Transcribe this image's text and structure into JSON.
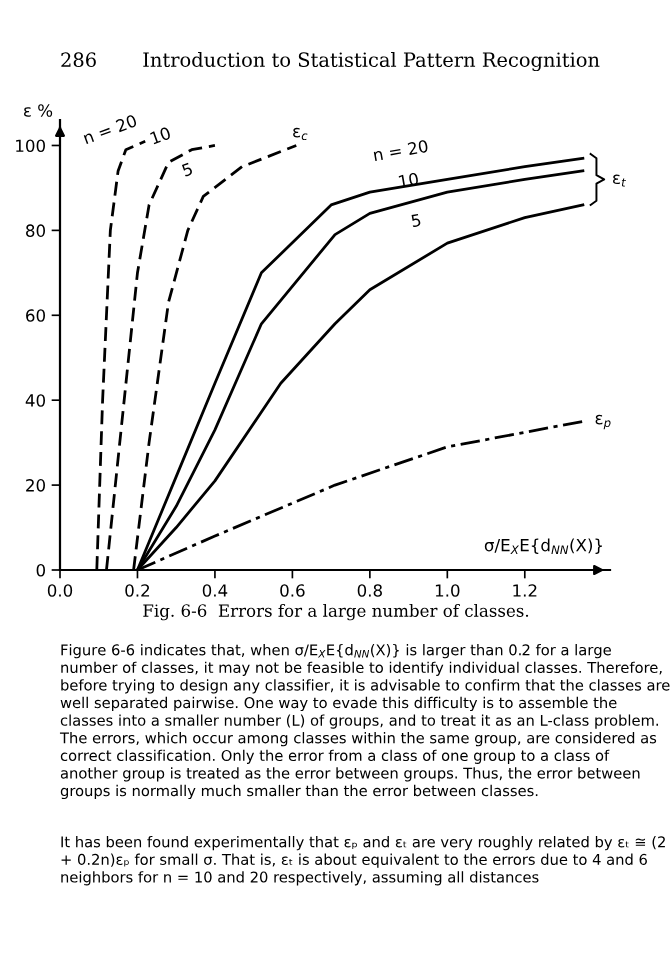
{
  "chart_data": {
    "type": "line",
    "xlabel": "σ/E$_{X}$E{d$_{NN}$(X)}",
    "ylabel": "ε %",
    "xlim": [
      0,
      1.42
    ],
    "ylim": [
      0,
      106
    ],
    "xticks": [
      {
        "value": 0,
        "label": "0.0"
      },
      0.2,
      0.4,
      0.6,
      0.8,
      {
        "value": 1,
        "label": "1.0"
      },
      1.2
    ],
    "yticks": [
      0,
      20,
      40,
      60,
      80,
      100
    ],
    "grid": false,
    "legend": false,
    "marker": "none",
    "series": [
      {
        "color": "#000000",
        "line_style": "dashed",
        "x": [
          0.095,
          0.11,
          0.13,
          0.15,
          0.17,
          0.22
        ],
        "values": [
          0,
          40,
          80,
          94,
          99,
          101
        ]
      },
      {
        "color": "#000000",
        "line_style": "dashed",
        "x": [
          0.12,
          0.16,
          0.2,
          0.23,
          0.28,
          0.34,
          0.4
        ],
        "values": [
          0,
          35,
          70,
          86,
          96,
          99,
          100
        ]
      },
      {
        "color": "#000000",
        "line_style": "dashed",
        "x": [
          0.19,
          0.23,
          0.28,
          0.33,
          0.37,
          0.47,
          0.61
        ],
        "values": [
          0,
          30,
          63,
          80,
          88,
          95,
          100
        ]
      },
      {
        "color": "#000000",
        "line_style": "solid",
        "x": [
          0.2,
          0.3,
          0.4,
          0.52,
          0.7,
          0.8,
          1.0,
          1.2,
          1.35
        ],
        "values": [
          0,
          22,
          44,
          70,
          86,
          89,
          92,
          95,
          97
        ]
      },
      {
        "color": "#000000",
        "line_style": "solid",
        "x": [
          0.2,
          0.3,
          0.4,
          0.52,
          0.71,
          0.8,
          1.0,
          1.2,
          1.35
        ],
        "values": [
          0,
          15,
          33,
          58,
          79,
          84,
          89,
          92,
          94
        ]
      },
      {
        "color": "#000000",
        "line_style": "solid",
        "x": [
          0.2,
          0.3,
          0.4,
          0.57,
          0.71,
          0.8,
          1.0,
          1.2,
          1.35
        ],
        "values": [
          0,
          10,
          21,
          44,
          58,
          66,
          77,
          83,
          86
        ]
      },
      {
        "color": "#000000",
        "line_style": "dashdot",
        "x": [
          0.2,
          0.4,
          0.71,
          1.0,
          1.35
        ],
        "values": [
          0,
          8,
          20,
          29,
          35
        ]
      }
    ],
    "annotations": [
      "n = 20",
      "10",
      "5",
      "ε$_{c}$",
      "n = 20",
      "10",
      "5",
      "ε$_{t}$",
      "ε$_{p}$",
      "286",
      "Introduction to Statistical Pattern Recognition",
      "Fig. 6-6  Errors for a large number of classes.",
      "Figure 6-6 indicates that, when σ/E$_{X}$E{d$_{NN}$(X)} is larger than 0.2 for a large number of classes, it may not be feasible to identify individual classes. Therefore, before trying to design any classifier, it is advisable to confirm that the classes are well separated pairwise. One way to evade this difficulty is to assemble the classes into a smaller number (L) of groups, and to treat it as an L-class problem. The errors, which occur among classes within the same group, are considered as correct classification. Only the error from a class of one group to a class of another group is treated as the error between groups. Thus, the error between groups is normally much smaller than the error between classes.",
      "It has been found experimentally that εₚ and εₜ are very roughly related by εₜ ≅ (2 + 0.2n)εₚ for small σ. That is, εₜ is about equivalent to the errors due to 4 and 6 neighbors for n = 10 and 20 respectively, assuming all distances"
    ]
  }
}
